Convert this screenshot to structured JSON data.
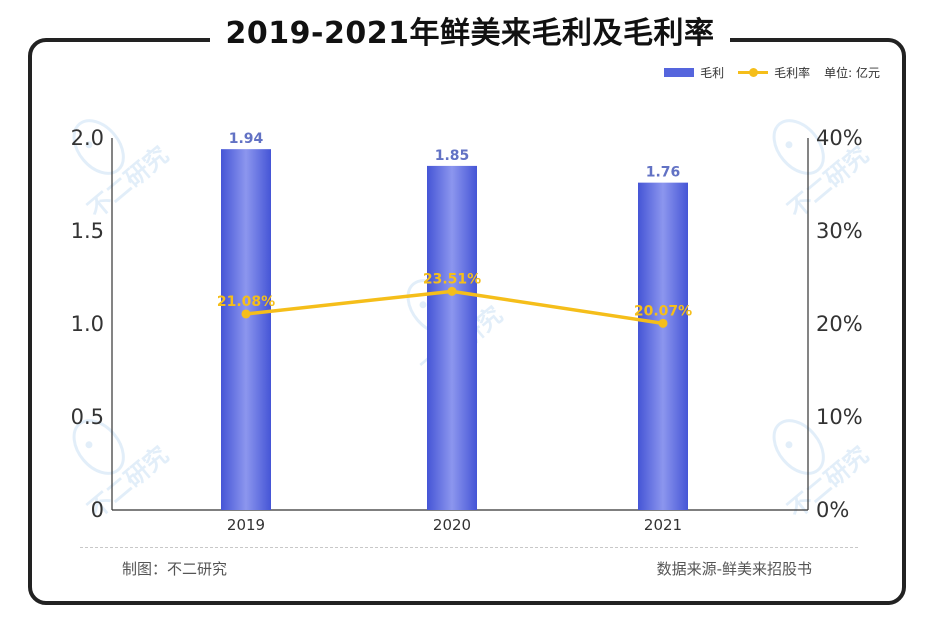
{
  "chart_data": {
    "type": "bar",
    "title": "2019-2021年鲜美来毛利及毛利率",
    "categories": [
      "2019",
      "2020",
      "2021"
    ],
    "series": [
      {
        "name": "毛利",
        "type": "bar",
        "axis": "left",
        "values": [
          1.94,
          1.85,
          1.76
        ],
        "labels": [
          "1.94",
          "1.85",
          "1.76"
        ]
      },
      {
        "name": "毛利率",
        "type": "line",
        "axis": "right",
        "values": [
          21.08,
          23.51,
          20.07
        ],
        "labels": [
          "21.08%",
          "23.51%",
          "20.07%"
        ]
      }
    ],
    "left_axis": {
      "ylim": [
        0,
        2.0
      ],
      "ticks": [
        "0",
        "0.5",
        "1.0",
        "1.5",
        "2.0"
      ]
    },
    "right_axis": {
      "ylim": [
        0,
        40
      ],
      "ticks": [
        "0%",
        "10%",
        "20%",
        "30%",
        "40%"
      ]
    },
    "unit_note": "单位: 亿元",
    "legend_position": "top-right",
    "grid": false
  },
  "colors": {
    "bar": "#5565dd",
    "bar_label": "#6272c4",
    "line": "#f5be1a",
    "line_label": "#f5be1a"
  },
  "watermark": "不二研究",
  "footer": {
    "left": "制图：不二研究",
    "right": "数据来源-鲜美来招股书"
  }
}
